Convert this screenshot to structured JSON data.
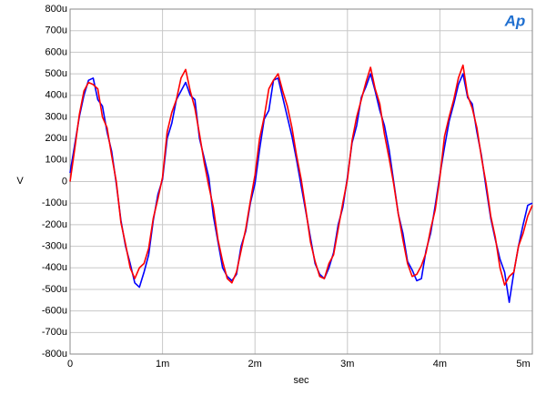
{
  "chart_data": {
    "type": "line",
    "logo": "Ap",
    "xlabel": "sec",
    "ylabel": "V",
    "xlim": [
      0,
      0.005
    ],
    "ylim": [
      -0.0008,
      0.0008
    ],
    "xticks": [
      0,
      {
        "value": 0.001,
        "label": "1m"
      },
      {
        "value": 0.002,
        "label": "2m"
      },
      {
        "value": 0.003,
        "label": "3m"
      },
      {
        "value": 0.004,
        "label": "4m"
      },
      {
        "value": 0.005,
        "label": "5m"
      }
    ],
    "yticks": [
      {
        "value": -0.0008,
        "label": "-800u"
      },
      {
        "value": -0.0007,
        "label": "-700u"
      },
      {
        "value": -0.0006,
        "label": "-600u"
      },
      {
        "value": -0.0005,
        "label": "-500u"
      },
      {
        "value": -0.0004,
        "label": "-400u"
      },
      {
        "value": -0.0003,
        "label": "-300u"
      },
      {
        "value": -0.0002,
        "label": "-200u"
      },
      {
        "value": -0.0001,
        "label": "-100u"
      },
      0,
      {
        "value": 0.0001,
        "label": "100u"
      },
      {
        "value": 0.0002,
        "label": "200u"
      },
      {
        "value": 0.0003,
        "label": "300u"
      },
      {
        "value": 0.0004,
        "label": "400u"
      },
      {
        "value": 0.0005,
        "label": "500u"
      },
      {
        "value": 0.0006,
        "label": "600u"
      },
      {
        "value": 0.0007,
        "label": "700u"
      },
      {
        "value": 0.0008,
        "label": "800u"
      }
    ],
    "grid": true,
    "x": [
      0,
      5e-05,
      0.0001,
      0.00015,
      0.0002,
      0.00025,
      0.0003,
      0.00035,
      0.0004,
      0.00045,
      0.0005,
      0.00055,
      0.0006,
      0.00065,
      0.0007,
      0.00075,
      0.0008,
      0.00085,
      0.0009,
      0.00095,
      0.001,
      0.00105,
      0.0011,
      0.00115,
      0.0012,
      0.00125,
      0.0013,
      0.00135,
      0.0014,
      0.00145,
      0.0015,
      0.00155,
      0.0016,
      0.00165,
      0.0017,
      0.00175,
      0.0018,
      0.00185,
      0.0019,
      0.00195,
      0.002,
      0.00205,
      0.0021,
      0.00215,
      0.0022,
      0.00225,
      0.0023,
      0.00235,
      0.0024,
      0.00245,
      0.0025,
      0.00255,
      0.0026,
      0.00265,
      0.0027,
      0.00275,
      0.0028,
      0.00285,
      0.0029,
      0.00295,
      0.003,
      0.00305,
      0.0031,
      0.00315,
      0.0032,
      0.00325,
      0.0033,
      0.00335,
      0.0034,
      0.00345,
      0.0035,
      0.00355,
      0.0036,
      0.00365,
      0.0037,
      0.00375,
      0.0038,
      0.00385,
      0.0039,
      0.00395,
      0.004,
      0.00405,
      0.0041,
      0.00415,
      0.0042,
      0.00425,
      0.0043,
      0.00435,
      0.0044,
      0.00445,
      0.0045,
      0.00455,
      0.0046,
      0.00465,
      0.0047,
      0.00475,
      0.0048,
      0.00485,
      0.0049,
      0.00495,
      0.005
    ],
    "series": [
      {
        "color": "#0000ff",
        "values": [
          4e-05,
          0.00017,
          0.0003,
          0.0004,
          0.00047,
          0.00048,
          0.00038,
          0.00035,
          0.00023,
          0.00014,
          -1e-05,
          -0.00018,
          -0.0003,
          -0.00038,
          -0.00047,
          -0.00049,
          -0.00042,
          -0.00034,
          -0.00018,
          -6e-05,
          1e-05,
          0.0002,
          0.00027,
          0.00038,
          0.00042,
          0.00046,
          0.0004,
          0.00038,
          0.0002,
          0.00011,
          2e-05,
          -0.00016,
          -0.00028,
          -0.0004,
          -0.00044,
          -0.00046,
          -0.00043,
          -0.0003,
          -0.00023,
          -0.0001,
          -1e-05,
          0.00015,
          0.00029,
          0.00033,
          0.00047,
          0.00048,
          0.00039,
          0.0003,
          0.00021,
          0.0001,
          -2e-05,
          -0.00014,
          -0.00026,
          -0.00038,
          -0.00043,
          -0.00045,
          -0.0004,
          -0.00033,
          -0.0002,
          -0.00012,
          2e-05,
          0.00018,
          0.00026,
          0.00039,
          0.00044,
          0.0005,
          0.00042,
          0.00033,
          0.00026,
          0.00015,
          0,
          -0.00015,
          -0.00024,
          -0.00037,
          -0.00041,
          -0.00046,
          -0.00045,
          -0.00032,
          -0.00024,
          -0.00011,
          3e-05,
          0.00016,
          0.00028,
          0.00036,
          0.00045,
          0.0005,
          0.00039,
          0.00036,
          0.00023,
          0.00012,
          -3e-05,
          -0.00017,
          -0.00027,
          -0.00036,
          -0.00042,
          -0.00056,
          -0.00042,
          -0.0003,
          -0.0002,
          -0.00011,
          -0.0001
        ]
      },
      {
        "color": "#ff0000",
        "values": [
          0,
          0.00015,
          0.00031,
          0.00042,
          0.00046,
          0.00045,
          0.00043,
          0.0003,
          0.00025,
          0.00012,
          0,
          -0.00019,
          -0.00029,
          -0.0004,
          -0.00045,
          -0.0004,
          -0.00038,
          -0.00031,
          -0.00017,
          -8e-05,
          2e-05,
          0.00023,
          0.00032,
          0.00038,
          0.00048,
          0.00052,
          0.00042,
          0.00034,
          0.00022,
          9e-05,
          -2e-05,
          -0.00012,
          -0.00027,
          -0.00037,
          -0.00045,
          -0.00047,
          -0.00042,
          -0.00032,
          -0.00022,
          -9e-05,
          3e-05,
          0.0002,
          0.0003,
          0.00043,
          0.00047,
          0.0005,
          0.00042,
          0.00035,
          0.00025,
          0.00012,
          1e-05,
          -0.00013,
          -0.00028,
          -0.00037,
          -0.00044,
          -0.00045,
          -0.00038,
          -0.00034,
          -0.00022,
          -0.0001,
          1e-05,
          0.00019,
          0.0003,
          0.00038,
          0.00046,
          0.00053,
          0.00043,
          0.00036,
          0.00022,
          0.00011,
          -1e-05,
          -0.00015,
          -0.00027,
          -0.00038,
          -0.00044,
          -0.00043,
          -0.00039,
          -0.00033,
          -0.00022,
          -0.00013,
          2e-05,
          0.00021,
          0.0003,
          0.00038,
          0.00048,
          0.00054,
          0.0004,
          0.00034,
          0.00025,
          0.00011,
          -1e-05,
          -0.00016,
          -0.00026,
          -0.0004,
          -0.00048,
          -0.00044,
          -0.00042,
          -0.0003,
          -0.00024,
          -0.00016,
          -0.00011
        ]
      }
    ]
  }
}
